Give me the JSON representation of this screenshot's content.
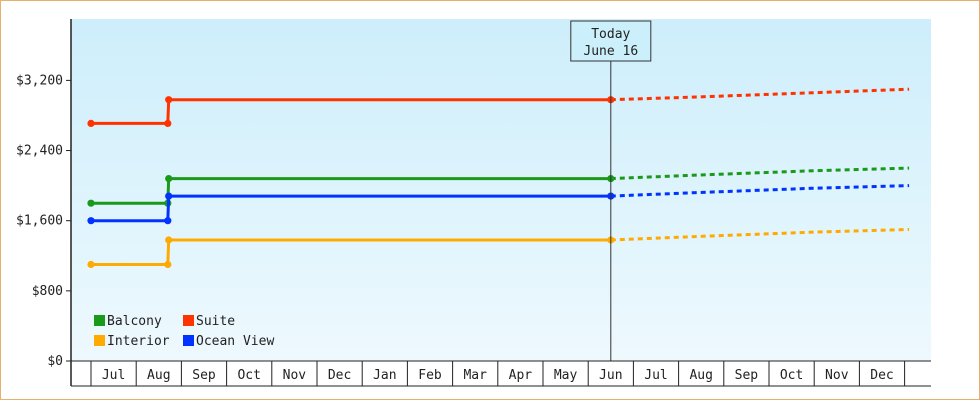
{
  "chart_data": {
    "type": "line",
    "title": "",
    "xlabel": "",
    "ylabel": "",
    "ylim": [
      0,
      3900
    ],
    "yticks": [
      0,
      800,
      1600,
      2400,
      3200
    ],
    "ytick_labels": [
      "$0",
      "$800",
      "$1,600",
      "$2,400",
      "$3,200"
    ],
    "months": [
      "Jul",
      "Aug",
      "Sep",
      "Oct",
      "Nov",
      "Dec",
      "Jan",
      "Feb",
      "Mar",
      "Apr",
      "May",
      "Jun",
      "Jul",
      "Aug",
      "Sep",
      "Oct",
      "Nov",
      "Dec"
    ],
    "grid": false,
    "legend_position": "bottom-left",
    "today": {
      "line1": "Today",
      "line2": "June 16",
      "month_index": 11.5
    },
    "series": [
      {
        "name": "Balcony",
        "color": "#1a9a1a",
        "steps": [
          [
            0,
            1800
          ],
          [
            1.7,
            1800
          ],
          [
            1.72,
            2080
          ],
          [
            11.5,
            2080
          ]
        ],
        "forecast": [
          [
            11.5,
            2080
          ],
          [
            13.4,
            2120
          ],
          [
            16,
            2170
          ],
          [
            18.1,
            2200
          ]
        ]
      },
      {
        "name": "Suite",
        "color": "#ff3300",
        "steps": [
          [
            0,
            2710
          ],
          [
            1.7,
            2710
          ],
          [
            1.72,
            2980
          ],
          [
            11.5,
            2980
          ]
        ],
        "forecast": [
          [
            11.5,
            2980
          ],
          [
            13.4,
            3010
          ],
          [
            16,
            3060
          ],
          [
            18.1,
            3100
          ]
        ]
      },
      {
        "name": "Interior",
        "color": "#ffaa00",
        "steps": [
          [
            0,
            1100
          ],
          [
            1.7,
            1100
          ],
          [
            1.72,
            1380
          ],
          [
            11.5,
            1380
          ]
        ],
        "forecast": [
          [
            11.5,
            1380
          ],
          [
            13.4,
            1420
          ],
          [
            16,
            1470
          ],
          [
            18.1,
            1500
          ]
        ]
      },
      {
        "name": "Ocean View",
        "color": "#0033ff",
        "steps": [
          [
            0,
            1600
          ],
          [
            1.7,
            1600
          ],
          [
            1.72,
            1880
          ],
          [
            11.5,
            1880
          ]
        ],
        "forecast": [
          [
            11.5,
            1880
          ],
          [
            13.4,
            1920
          ],
          [
            16,
            1970
          ],
          [
            18.1,
            2000
          ]
        ]
      }
    ]
  }
}
